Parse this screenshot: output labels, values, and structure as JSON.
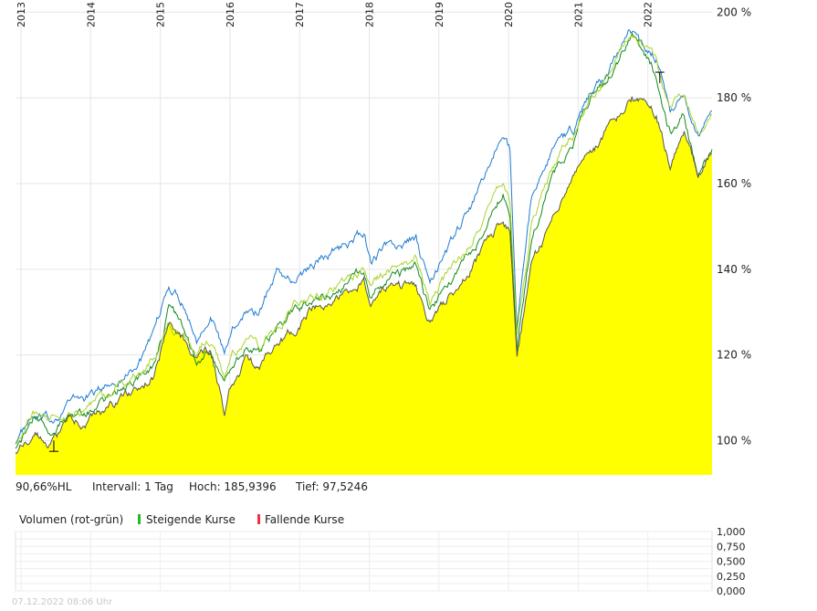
{
  "chart_data": {
    "type": "line",
    "x_ticks": [
      "2013",
      "2014",
      "2015",
      "2016",
      "2017",
      "2018",
      "2019",
      "2020",
      "2021",
      "2022"
    ],
    "y_ticks": [
      "200 %",
      "180 %",
      "160 %",
      "140 %",
      "120 %",
      "100 %"
    ],
    "ylim": [
      92,
      202
    ],
    "area_color": "#ffff00",
    "series": [
      {
        "color": "#1e7bd2",
        "points": [
          [
            2013.0,
            100
          ],
          [
            2013.25,
            105
          ],
          [
            2013.5,
            104
          ],
          [
            2013.75,
            109
          ],
          [
            2014.0,
            110
          ],
          [
            2014.25,
            112
          ],
          [
            2014.5,
            115
          ],
          [
            2014.75,
            118
          ],
          [
            2015.0,
            124
          ],
          [
            2015.2,
            136
          ],
          [
            2015.4,
            133
          ],
          [
            2015.6,
            124
          ],
          [
            2015.8,
            131
          ],
          [
            2016.0,
            120
          ],
          [
            2016.1,
            125
          ],
          [
            2016.3,
            131
          ],
          [
            2016.5,
            130
          ],
          [
            2016.75,
            140
          ],
          [
            2017.0,
            137
          ],
          [
            2017.25,
            141
          ],
          [
            2017.5,
            144
          ],
          [
            2017.75,
            146
          ],
          [
            2018.0,
            148
          ],
          [
            2018.1,
            142
          ],
          [
            2018.3,
            145
          ],
          [
            2018.5,
            145
          ],
          [
            2018.75,
            147
          ],
          [
            2018.95,
            136
          ],
          [
            2019.25,
            146
          ],
          [
            2019.5,
            153
          ],
          [
            2019.75,
            162
          ],
          [
            2020.0,
            172
          ],
          [
            2020.1,
            168
          ],
          [
            2020.2,
            127
          ],
          [
            2020.4,
            155
          ],
          [
            2020.6,
            165
          ],
          [
            2020.8,
            170
          ],
          [
            2021.0,
            172
          ],
          [
            2021.25,
            181
          ],
          [
            2021.5,
            185
          ],
          [
            2021.75,
            195
          ],
          [
            2021.85,
            196
          ],
          [
            2022.0,
            192
          ],
          [
            2022.2,
            190
          ],
          [
            2022.4,
            178
          ],
          [
            2022.6,
            180
          ],
          [
            2022.8,
            171
          ],
          [
            2023.0,
            177
          ]
        ]
      },
      {
        "color": "#138a1b",
        "points": [
          [
            2013.0,
            99
          ],
          [
            2013.25,
            104
          ],
          [
            2013.5,
            103
          ],
          [
            2013.75,
            106
          ],
          [
            2014.0,
            106
          ],
          [
            2014.25,
            109
          ],
          [
            2014.5,
            112
          ],
          [
            2014.75,
            114
          ],
          [
            2015.0,
            118
          ],
          [
            2015.2,
            130
          ],
          [
            2015.4,
            127
          ],
          [
            2015.6,
            119
          ],
          [
            2015.8,
            122
          ],
          [
            2016.0,
            113
          ],
          [
            2016.1,
            117
          ],
          [
            2016.3,
            122
          ],
          [
            2016.5,
            121
          ],
          [
            2016.75,
            126
          ],
          [
            2017.0,
            130
          ],
          [
            2017.25,
            133
          ],
          [
            2017.5,
            134
          ],
          [
            2017.75,
            137
          ],
          [
            2018.0,
            140
          ],
          [
            2018.1,
            134
          ],
          [
            2018.3,
            137
          ],
          [
            2018.5,
            139
          ],
          [
            2018.75,
            140
          ],
          [
            2018.95,
            130
          ],
          [
            2019.25,
            138
          ],
          [
            2019.5,
            144
          ],
          [
            2019.75,
            150
          ],
          [
            2020.0,
            158
          ],
          [
            2020.1,
            154
          ],
          [
            2020.2,
            123
          ],
          [
            2020.4,
            146
          ],
          [
            2020.6,
            156
          ],
          [
            2020.8,
            164
          ],
          [
            2021.0,
            170
          ],
          [
            2021.25,
            180
          ],
          [
            2021.5,
            184
          ],
          [
            2021.75,
            192
          ],
          [
            2021.85,
            194
          ],
          [
            2022.0,
            190
          ],
          [
            2022.2,
            185
          ],
          [
            2022.4,
            172
          ],
          [
            2022.6,
            176
          ],
          [
            2022.8,
            162
          ],
          [
            2023.0,
            168
          ]
        ]
      },
      {
        "color": "#a9d42a",
        "points": [
          [
            2013.0,
            100
          ],
          [
            2013.25,
            106
          ],
          [
            2013.5,
            104
          ],
          [
            2013.75,
            107
          ],
          [
            2014.0,
            107
          ],
          [
            2014.25,
            110
          ],
          [
            2014.5,
            113
          ],
          [
            2014.75,
            115
          ],
          [
            2015.0,
            119
          ],
          [
            2015.2,
            128
          ],
          [
            2015.4,
            125
          ],
          [
            2015.6,
            121
          ],
          [
            2015.8,
            124
          ],
          [
            2016.0,
            115
          ],
          [
            2016.1,
            119
          ],
          [
            2016.3,
            124
          ],
          [
            2016.5,
            122
          ],
          [
            2016.75,
            127
          ],
          [
            2017.0,
            131
          ],
          [
            2017.25,
            134
          ],
          [
            2017.5,
            135
          ],
          [
            2017.75,
            138
          ],
          [
            2018.0,
            141
          ],
          [
            2018.1,
            136
          ],
          [
            2018.3,
            139
          ],
          [
            2018.5,
            141
          ],
          [
            2018.75,
            142
          ],
          [
            2018.95,
            132
          ],
          [
            2019.25,
            140
          ],
          [
            2019.5,
            146
          ],
          [
            2019.75,
            153
          ],
          [
            2020.0,
            160
          ],
          [
            2020.1,
            156
          ],
          [
            2020.2,
            126
          ],
          [
            2020.4,
            150
          ],
          [
            2020.6,
            160
          ],
          [
            2020.8,
            167
          ],
          [
            2021.0,
            172
          ],
          [
            2021.25,
            181
          ],
          [
            2021.5,
            185
          ],
          [
            2021.75,
            193
          ],
          [
            2021.85,
            195
          ],
          [
            2022.0,
            193
          ],
          [
            2022.2,
            188
          ],
          [
            2022.4,
            177
          ],
          [
            2022.6,
            181
          ],
          [
            2022.8,
            170
          ],
          [
            2023.0,
            176
          ]
        ]
      },
      {
        "color": "#555555",
        "fill": true,
        "points": [
          [
            2013.0,
            98
          ],
          [
            2013.25,
            102
          ],
          [
            2013.5,
            100
          ],
          [
            2013.75,
            103
          ],
          [
            2014.0,
            104
          ],
          [
            2014.25,
            106
          ],
          [
            2014.5,
            109
          ],
          [
            2014.75,
            112
          ],
          [
            2015.0,
            116
          ],
          [
            2015.2,
            127
          ],
          [
            2015.4,
            124
          ],
          [
            2015.6,
            118
          ],
          [
            2015.8,
            121
          ],
          [
            2016.0,
            107
          ],
          [
            2016.1,
            113
          ],
          [
            2016.3,
            118
          ],
          [
            2016.5,
            117
          ],
          [
            2016.75,
            122
          ],
          [
            2017.0,
            126
          ],
          [
            2017.25,
            131
          ],
          [
            2017.5,
            132
          ],
          [
            2017.75,
            134
          ],
          [
            2018.0,
            138
          ],
          [
            2018.1,
            133
          ],
          [
            2018.3,
            135
          ],
          [
            2018.5,
            136
          ],
          [
            2018.75,
            136
          ],
          [
            2018.95,
            128
          ],
          [
            2019.25,
            134
          ],
          [
            2019.5,
            140
          ],
          [
            2019.75,
            145
          ],
          [
            2020.0,
            152
          ],
          [
            2020.1,
            149
          ],
          [
            2020.2,
            120
          ],
          [
            2020.4,
            140
          ],
          [
            2020.6,
            147
          ],
          [
            2020.8,
            156
          ],
          [
            2021.0,
            160
          ],
          [
            2021.25,
            166
          ],
          [
            2021.5,
            172
          ],
          [
            2021.75,
            178
          ],
          [
            2021.85,
            180
          ],
          [
            2022.0,
            178
          ],
          [
            2022.2,
            176
          ],
          [
            2022.4,
            165
          ],
          [
            2022.6,
            171
          ],
          [
            2022.8,
            162
          ],
          [
            2023.0,
            167
          ]
        ]
      }
    ],
    "markers": [
      {
        "x": 2013.55,
        "y": 97.5,
        "type": "low"
      },
      {
        "x": 2022.25,
        "y": 186,
        "type": "high"
      }
    ]
  },
  "stats": {
    "perf": "90,66%HL",
    "intervall": "Intervall: 1 Tag",
    "hoch": "Hoch: 185,9396",
    "tief": "Tief: 97,5246"
  },
  "volume": {
    "title": "Volumen (rot-grün)",
    "legend_up": "Steigende Kurse",
    "legend_down": "Fallende Kurse",
    "up_color": "#22bb22",
    "down_color": "#ee3344",
    "y_ticks": [
      "1,000",
      "0,750",
      "0,500",
      "0,250",
      "0,000"
    ]
  },
  "timestamp": "07.12.2022 08:06 Uhr"
}
